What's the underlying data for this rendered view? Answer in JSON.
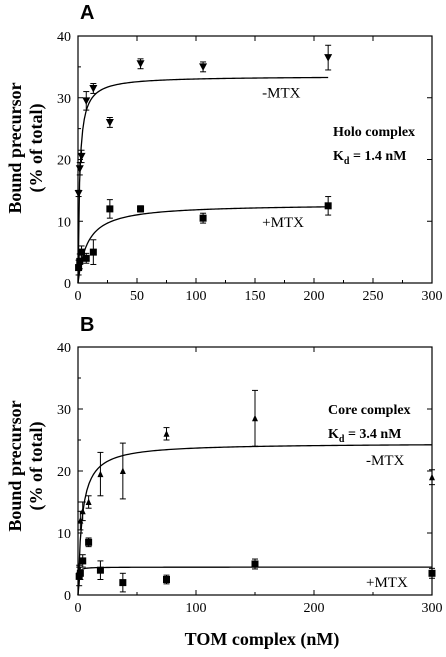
{
  "chart_data": [
    {
      "type": "scatter",
      "panel": "A",
      "xlim": [
        0,
        300
      ],
      "ylim": [
        0,
        40
      ],
      "xticks": [
        "0",
        "50",
        "100",
        "150",
        "200",
        "250",
        "300"
      ],
      "yticks": [
        "0",
        "10",
        "20",
        "30",
        "40"
      ],
      "ylabel_line1": "Bound precursor",
      "ylabel_line2": "(% of total)",
      "box_line1": "Holo complex",
      "box_kd_prefix": "K",
      "box_kd_sub": "d",
      "box_kd_value": " = 1.4 nM",
      "series": [
        {
          "name": "-MTX",
          "marker": "triangle-down",
          "fit": {
            "bmax": 33.5,
            "kd": 1.4
          },
          "points": [
            {
              "x": 0.5,
              "y": 14.5,
              "err": 0.5
            },
            {
              "x": 1.5,
              "y": 18.5,
              "err": 1.0
            },
            {
              "x": 3,
              "y": 20.5,
              "err": 1.0
            },
            {
              "x": 7,
              "y": 29.5,
              "err": 1.5
            },
            {
              "x": 13,
              "y": 31.5,
              "err": 0.8
            },
            {
              "x": 27,
              "y": 26.0,
              "err": 0.8
            },
            {
              "x": 53,
              "y": 35.5,
              "err": 0.8
            },
            {
              "x": 106,
              "y": 35.0,
              "err": 0.8
            },
            {
              "x": 212,
              "y": 36.5,
              "err": 2.0
            }
          ]
        },
        {
          "name": "+MTX",
          "marker": "square",
          "fit": {
            "bmax": 12.8,
            "kd": 8
          },
          "points": [
            {
              "x": 0.5,
              "y": 2.5,
              "err": 1.2
            },
            {
              "x": 1.5,
              "y": 3.5,
              "err": 1.2
            },
            {
              "x": 3,
              "y": 5.0,
              "err": 1.0
            },
            {
              "x": 7,
              "y": 4.0,
              "err": 0.8
            },
            {
              "x": 13,
              "y": 5.0,
              "err": 2.0
            },
            {
              "x": 27,
              "y": 12.0,
              "err": 1.5
            },
            {
              "x": 53,
              "y": 12.0,
              "err": 0.5
            },
            {
              "x": 106,
              "y": 10.5,
              "err": 0.8
            },
            {
              "x": 212,
              "y": 12.5,
              "err": 1.5
            }
          ]
        }
      ]
    },
    {
      "type": "scatter",
      "panel": "B",
      "xlim": [
        0,
        300
      ],
      "ylim": [
        0,
        40
      ],
      "xticks": [
        "0",
        "100",
        "200",
        "300"
      ],
      "yticks": [
        "0",
        "10",
        "20",
        "30",
        "40"
      ],
      "xlabel": "TOM complex (nM)",
      "ylabel_line1": "Bound precursor",
      "ylabel_line2": "(% of total)",
      "box_line1": "Core complex",
      "box_kd_prefix": "K",
      "box_kd_sub": "d",
      "box_kd_value": " = 3.4 nM",
      "series": [
        {
          "name": "-MTX",
          "marker": "triangle-up",
          "fit": {
            "bmax": 24.5,
            "kd": 3.4
          },
          "points": [
            {
              "x": 1,
              "y": 4.0,
              "err": 0.8
            },
            {
              "x": 2,
              "y": 12.0,
              "err": 1.5
            },
            {
              "x": 4,
              "y": 13.5,
              "err": 1.5
            },
            {
              "x": 9,
              "y": 15.0,
              "err": 1.0
            },
            {
              "x": 19,
              "y": 19.5,
              "err": 3.5
            },
            {
              "x": 38,
              "y": 20.0,
              "err": 4.5
            },
            {
              "x": 75,
              "y": 26.0,
              "err": 1.0
            },
            {
              "x": 150,
              "y": 28.5,
              "err": 4.5
            },
            {
              "x": 300,
              "y": 19.0,
              "err": 1.2
            }
          ]
        },
        {
          "name": "+MTX",
          "marker": "square",
          "fit": {
            "bmax": 4.5,
            "kd": 0.3
          },
          "points": [
            {
              "x": 1,
              "y": 3.0,
              "err": 1.5
            },
            {
              "x": 2,
              "y": 3.5,
              "err": 1.0
            },
            {
              "x": 4,
              "y": 5.5,
              "err": 1.0
            },
            {
              "x": 9,
              "y": 8.5,
              "err": 0.7
            },
            {
              "x": 19,
              "y": 4.0,
              "err": 1.5
            },
            {
              "x": 38,
              "y": 2.0,
              "err": 1.5
            },
            {
              "x": 75,
              "y": 2.5,
              "err": 0.7
            },
            {
              "x": 150,
              "y": 5.0,
              "err": 0.8
            },
            {
              "x": 300,
              "y": 3.5,
              "err": 0.8
            }
          ]
        }
      ]
    }
  ]
}
